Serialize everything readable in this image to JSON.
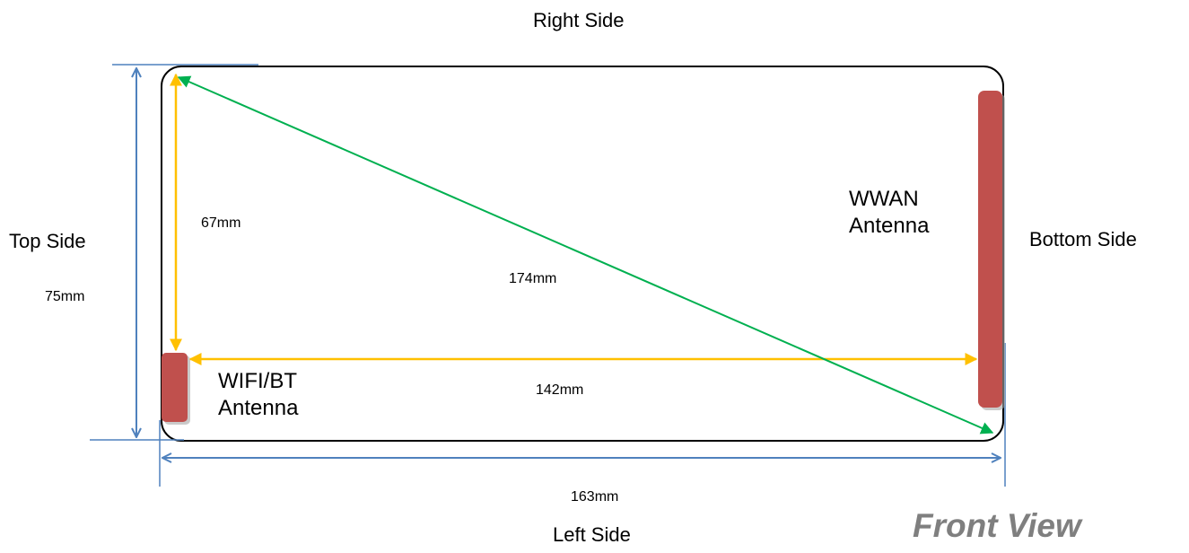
{
  "labels": {
    "top_edge": "Right Side",
    "bottom_edge": "Left Side",
    "left_edge": "Top Side",
    "right_edge": "Bottom Side"
  },
  "antennas": {
    "wwan": "WWAN\nAntenna",
    "wifi_bt": "WIFI/BT\nAntenna"
  },
  "dimensions": {
    "height": "75mm",
    "width": "163mm",
    "wifi_to_wwan_vertical": "67mm",
    "wifi_to_wwan_horizontal": "142mm",
    "diagonal": "174mm"
  },
  "view_title": "Front View",
  "colors": {
    "device_outline": "#000000",
    "antenna_fill": "#c0504d",
    "antenna_shadow": "#a6a6a6",
    "dimension_blue": "#4f81bd",
    "dimension_yellow": "#ffc000",
    "dimension_green": "#00b050",
    "title_gray": "#7f7f7f"
  }
}
